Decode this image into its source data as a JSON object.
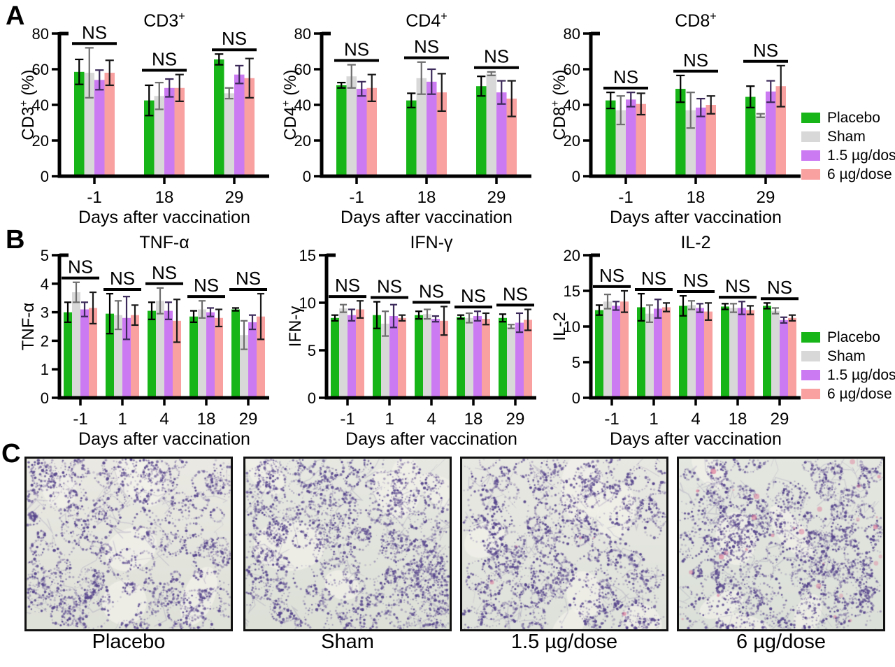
{
  "figure": {
    "panel_labels": [
      "A",
      "B",
      "C"
    ]
  },
  "legend": {
    "items": [
      {
        "label": "Placebo",
        "color": "#17b517",
        "error_color": "#000000"
      },
      {
        "label": "Sham",
        "color": "#d8d8d8",
        "error_color": "#6e6e6e"
      },
      {
        "label": "1.5 µg/dose",
        "color": "#cc7af2",
        "error_color": "#3c2a5a"
      },
      {
        "label": "6 µg/dose",
        "color": "#f9a0a0",
        "error_color": "#1a1a1a"
      }
    ]
  },
  "chart_data": [
    {
      "id": "cd3",
      "type": "bar",
      "title": {
        "base": "CD3",
        "sup": "+"
      },
      "ylabel": {
        "base": "CD3",
        "sup": "+",
        "rest": " (%)"
      },
      "xlabel": "Days after vaccination",
      "categories": [
        "-1",
        "18",
        "29"
      ],
      "ylim": [
        0,
        80
      ],
      "ytick": 20,
      "grid": false,
      "ns_labels": [
        "NS",
        "NS",
        "NS"
      ],
      "series": [
        {
          "name": "Placebo",
          "values": [
            58.5,
            42.5,
            65.5
          ],
          "errors": [
            7,
            8.5,
            3
          ]
        },
        {
          "name": "Sham",
          "values": [
            58,
            45,
            46.5
          ],
          "errors": [
            14,
            7.5,
            3
          ]
        },
        {
          "name": "1.5 µg/dose",
          "values": [
            54,
            49.5,
            57
          ],
          "errors": [
            5.5,
            5,
            5
          ]
        },
        {
          "name": "6 µg/dose",
          "values": [
            58,
            49.5,
            55
          ],
          "errors": [
            7,
            7.5,
            11
          ]
        }
      ]
    },
    {
      "id": "cd4",
      "type": "bar",
      "title": {
        "base": "CD4",
        "sup": "+"
      },
      "ylabel": {
        "base": "CD4",
        "sup": "+",
        "rest": " (%)"
      },
      "xlabel": "Days after vaccination",
      "categories": [
        "-1",
        "18",
        "29"
      ],
      "ylim": [
        0,
        80
      ],
      "ytick": 20,
      "grid": false,
      "ns_labels": [
        "NS",
        "NS",
        "NS"
      ],
      "series": [
        {
          "name": "Placebo",
          "values": [
            51,
            42.5,
            50.5
          ],
          "errors": [
            1.5,
            4,
            5.5
          ]
        },
        {
          "name": "Sham",
          "values": [
            56,
            55,
            57.5
          ],
          "errors": [
            6.5,
            9,
            1
          ]
        },
        {
          "name": "1.5 µg/dose",
          "values": [
            49,
            53,
            47
          ],
          "errors": [
            4,
            7,
            6.5
          ]
        },
        {
          "name": "6 µg/dose",
          "values": [
            49.5,
            47,
            43.5
          ],
          "errors": [
            7.5,
            10.5,
            10
          ]
        }
      ]
    },
    {
      "id": "cd8",
      "type": "bar",
      "title": {
        "base": "CD8",
        "sup": "+"
      },
      "ylabel": {
        "base": "CD8",
        "sup": "+",
        "rest": " (%)"
      },
      "xlabel": "Days after vaccination",
      "categories": [
        "-1",
        "18",
        "29"
      ],
      "ylim": [
        0,
        80
      ],
      "ytick": 20,
      "grid": false,
      "ns_labels": [
        "NS",
        "NS",
        "NS"
      ],
      "series": [
        {
          "name": "Placebo",
          "values": [
            42.5,
            49,
            44.5
          ],
          "errors": [
            4.5,
            7.5,
            6
          ]
        },
        {
          "name": "Sham",
          "values": [
            37,
            37,
            34
          ],
          "errors": [
            8,
            10,
            1
          ]
        },
        {
          "name": "1.5 µg/dose",
          "values": [
            43,
            38.5,
            47.5
          ],
          "errors": [
            4,
            5,
            6
          ]
        },
        {
          "name": "6 µg/dose",
          "values": [
            40.5,
            40,
            50.5
          ],
          "errors": [
            6,
            5,
            11.5
          ]
        }
      ]
    },
    {
      "id": "tnf",
      "type": "bar",
      "title": {
        "base": "TNF-α"
      },
      "ylabel": {
        "base": "TNF-α"
      },
      "xlabel": "Days after vaccination",
      "categories": [
        "-1",
        "1",
        "4",
        "18",
        "29"
      ],
      "ylim": [
        0,
        5
      ],
      "ytick": 1,
      "grid": false,
      "ns_labels": [
        "NS",
        "NS",
        "NS",
        "NS",
        "NS"
      ],
      "series": [
        {
          "name": "Placebo",
          "values": [
            3.0,
            2.95,
            3.05,
            2.85,
            3.1
          ],
          "errors": [
            0.35,
            0.7,
            0.3,
            0.2,
            0.05
          ]
        },
        {
          "name": "Sham",
          "values": [
            3.7,
            2.9,
            3.4,
            3.1,
            2.2
          ],
          "errors": [
            0.35,
            0.5,
            0.45,
            0.3,
            0.5
          ]
        },
        {
          "name": "1.5 µg/dose",
          "values": [
            3.1,
            2.8,
            3.05,
            3.0,
            2.65
          ],
          "errors": [
            0.25,
            0.75,
            0.3,
            0.15,
            0.25
          ]
        },
        {
          "name": "6 µg/dose",
          "values": [
            3.15,
            2.9,
            2.7,
            2.8,
            2.85
          ],
          "errors": [
            0.55,
            0.35,
            0.75,
            0.3,
            0.8
          ]
        }
      ]
    },
    {
      "id": "ifn",
      "type": "bar",
      "title": {
        "base": "IFN-γ"
      },
      "ylabel": {
        "base": "IFN-γ"
      },
      "xlabel": "Days after vaccination",
      "categories": [
        "-1",
        "1",
        "4",
        "18",
        "29"
      ],
      "ylim": [
        0,
        15
      ],
      "ytick": 5,
      "grid": false,
      "ns_labels": [
        "NS",
        "NS",
        "NS",
        "NS",
        "NS"
      ],
      "series": [
        {
          "name": "Placebo",
          "values": [
            8.4,
            8.7,
            8.7,
            8.5,
            8.4
          ],
          "errors": [
            0.3,
            1.4,
            0.4,
            0.2,
            0.4
          ]
        },
        {
          "name": "Sham",
          "values": [
            9.4,
            7.8,
            8.8,
            8.4,
            7.5
          ],
          "errors": [
            0.4,
            1.3,
            0.5,
            0.5,
            0.2
          ]
        },
        {
          "name": "1.5 µg/dose",
          "values": [
            8.7,
            8.6,
            8.3,
            8.6,
            7.9
          ],
          "errors": [
            0.6,
            1.2,
            0.3,
            0.5,
            1.0
          ]
        },
        {
          "name": "6 µg/dose",
          "values": [
            9.3,
            8.4,
            8.1,
            8.3,
            8.2
          ],
          "errors": [
            0.9,
            0.3,
            1.5,
            0.6,
            1.1
          ]
        }
      ]
    },
    {
      "id": "il2",
      "type": "bar",
      "title": {
        "base": "IL-2"
      },
      "ylabel": {
        "base": "IL-2"
      },
      "xlabel": "Days after vaccination",
      "categories": [
        "-1",
        "1",
        "4",
        "18",
        "29"
      ],
      "ylim": [
        0,
        20
      ],
      "ytick": 5,
      "grid": false,
      "ns_labels": [
        "NS",
        "NS",
        "NS",
        "NS",
        "NS"
      ],
      "series": [
        {
          "name": "Placebo",
          "values": [
            12.3,
            12.7,
            12.9,
            12.8,
            12.9
          ],
          "errors": [
            0.7,
            1.9,
            1.4,
            0.4,
            0.4
          ]
        },
        {
          "name": "Sham",
          "values": [
            13.5,
            11.8,
            13.0,
            12.6,
            12.2
          ],
          "errors": [
            1.0,
            1.2,
            0.6,
            0.6,
            0.4
          ]
        },
        {
          "name": "1.5 µg/dose",
          "values": [
            12.9,
            12.5,
            12.6,
            12.6,
            10.9
          ],
          "errors": [
            0.6,
            1.3,
            0.6,
            0.9,
            0.4
          ]
        },
        {
          "name": "6 µg/dose",
          "values": [
            13.5,
            12.7,
            12.1,
            12.3,
            11.2
          ],
          "errors": [
            1.5,
            0.6,
            1.2,
            0.6,
            0.4
          ]
        }
      ]
    }
  ],
  "histology": {
    "stain_colors": {
      "wall": "#7868a0",
      "nucleus": "#52418a",
      "pink": "#dd7a9a"
    },
    "panels": [
      {
        "label": "Placebo",
        "seed": 11,
        "cells": 150,
        "pink": 0,
        "bg": "#eae9e3",
        "bg2": "#dee1d8"
      },
      {
        "label": "Sham",
        "seed": 23,
        "cells": 180,
        "pink": 0,
        "bg": "#e6e8e1",
        "bg2": "#dce0d7"
      },
      {
        "label": "1.5 µg/dose",
        "seed": 37,
        "cells": 160,
        "pink": 5,
        "bg": "#e8e8e2",
        "bg2": "#dee2da"
      },
      {
        "label": "6 µg/dose",
        "seed": 51,
        "cells": 180,
        "pink": 28,
        "bg": "#e4e7e0",
        "bg2": "#dbe0d8"
      }
    ]
  }
}
